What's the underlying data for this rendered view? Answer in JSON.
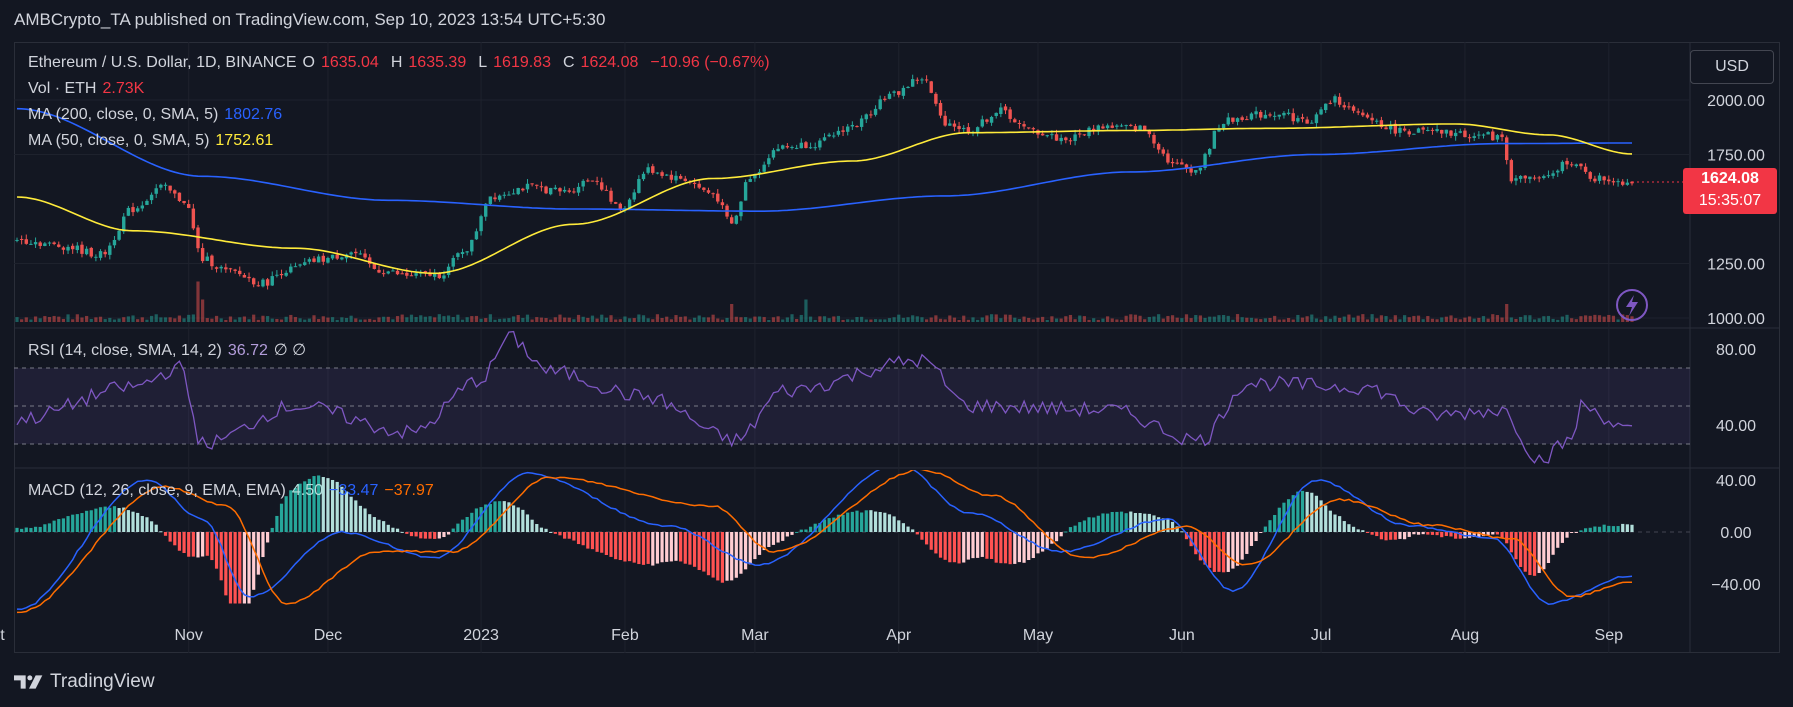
{
  "header": {
    "publisher": "AMBCrypto_TA published on TradingView.com, Sep 10, 2023 13:54 UTC+5:30"
  },
  "currency_button": "USD",
  "price_tag": {
    "price": "1624.08",
    "countdown": "15:35:07"
  },
  "legend": {
    "symbol": "Ethereum / U.S. Dollar, 1D, BINANCE",
    "o_label": "O",
    "o_value": "1635.04",
    "h_label": "H",
    "h_value": "1635.39",
    "l_label": "L",
    "l_value": "1619.83",
    "c_label": "C",
    "c_value": "1624.08",
    "change": "−10.96 (−0.67%)",
    "vol_label": "Vol · ETH",
    "vol_value": "2.73K",
    "ma200_label": "MA (200, close, 0, SMA, 5)",
    "ma200_value": "1802.76",
    "ma50_label": "MA (50, close, 0, SMA, 5)",
    "ma50_value": "1752.61",
    "rsi_label": "RSI (14, close, SMA, 14, 2)",
    "rsi_value": "36.72",
    "rsi_extra": "∅ ∅",
    "macd_label": "MACD (12, 26, close, 9, EMA, EMA)",
    "macd_hist": "4.50",
    "macd_line": "−33.47",
    "macd_signal": "−37.97"
  },
  "footer": {
    "brand": "TradingView"
  },
  "colors": {
    "bg": "#131722",
    "up": "#26a69a",
    "down": "#ef5350",
    "ma200": "#2962ff",
    "ma50": "#ffeb3b",
    "rsi": "#7e57c2",
    "macd": "#2962ff",
    "signal": "#ff6d00"
  },
  "chart_data": {
    "type": "candlestick",
    "x_tick_labels": [
      "ct",
      "Nov",
      "Dec",
      "2023",
      "Feb",
      "Mar",
      "Apr",
      "May",
      "Jun",
      "Jul",
      "Aug",
      "Sep"
    ],
    "price_axis": {
      "ticks": [
        "2000.00",
        "1750.00",
        "1250.00",
        "1000.00"
      ],
      "range": [
        990,
        2120
      ]
    },
    "rsi_axis": {
      "ticks": [
        "80.00",
        "40.00"
      ],
      "bands": [
        30,
        50,
        70
      ]
    },
    "macd_axis": {
      "ticks": [
        "40.00",
        "0.00",
        "−40.00"
      ],
      "range": [
        -62,
        48
      ]
    },
    "close_anchors": [
      {
        "d": 0,
        "v": 1360
      },
      {
        "d": 10,
        "v": 1330
      },
      {
        "d": 18,
        "v": 1290
      },
      {
        "d": 25,
        "v": 1500
      },
      {
        "d": 31,
        "v": 1600
      },
      {
        "d": 36,
        "v": 1540
      },
      {
        "d": 40,
        "v": 1270
      },
      {
        "d": 46,
        "v": 1210
      },
      {
        "d": 53,
        "v": 1160
      },
      {
        "d": 58,
        "v": 1220
      },
      {
        "d": 66,
        "v": 1270
      },
      {
        "d": 72,
        "v": 1300
      },
      {
        "d": 78,
        "v": 1220
      },
      {
        "d": 84,
        "v": 1195
      },
      {
        "d": 91,
        "v": 1200
      },
      {
        "d": 97,
        "v": 1320
      },
      {
        "d": 102,
        "v": 1560
      },
      {
        "d": 110,
        "v": 1600
      },
      {
        "d": 118,
        "v": 1580
      },
      {
        "d": 124,
        "v": 1640
      },
      {
        "d": 130,
        "v": 1500
      },
      {
        "d": 136,
        "v": 1680
      },
      {
        "d": 143,
        "v": 1640
      },
      {
        "d": 150,
        "v": 1570
      },
      {
        "d": 154,
        "v": 1430
      },
      {
        "d": 158,
        "v": 1650
      },
      {
        "d": 164,
        "v": 1780
      },
      {
        "d": 172,
        "v": 1800
      },
      {
        "d": 180,
        "v": 1880
      },
      {
        "d": 188,
        "v": 2020
      },
      {
        "d": 195,
        "v": 2100
      },
      {
        "d": 200,
        "v": 1900
      },
      {
        "d": 205,
        "v": 1860
      },
      {
        "d": 212,
        "v": 1950
      },
      {
        "d": 218,
        "v": 1860
      },
      {
        "d": 226,
        "v": 1820
      },
      {
        "d": 234,
        "v": 1880
      },
      {
        "d": 242,
        "v": 1870
      },
      {
        "d": 250,
        "v": 1700
      },
      {
        "d": 254,
        "v": 1680
      },
      {
        "d": 260,
        "v": 1900
      },
      {
        "d": 266,
        "v": 1930
      },
      {
        "d": 272,
        "v": 1940
      },
      {
        "d": 278,
        "v": 1900
      },
      {
        "d": 284,
        "v": 2000
      },
      {
        "d": 290,
        "v": 1920
      },
      {
        "d": 298,
        "v": 1860
      },
      {
        "d": 306,
        "v": 1850
      },
      {
        "d": 314,
        "v": 1840
      },
      {
        "d": 320,
        "v": 1830
      },
      {
        "d": 322,
        "v": 1640
      },
      {
        "d": 330,
        "v": 1640
      },
      {
        "d": 334,
        "v": 1720
      },
      {
        "d": 340,
        "v": 1640
      },
      {
        "d": 348,
        "v": 1624
      }
    ],
    "ma200_anchors": [
      {
        "d": 0,
        "v": 1960
      },
      {
        "d": 40,
        "v": 1650
      },
      {
        "d": 80,
        "v": 1540
      },
      {
        "d": 120,
        "v": 1500
      },
      {
        "d": 160,
        "v": 1490
      },
      {
        "d": 200,
        "v": 1560
      },
      {
        "d": 240,
        "v": 1670
      },
      {
        "d": 280,
        "v": 1750
      },
      {
        "d": 320,
        "v": 1800
      },
      {
        "d": 348,
        "v": 1802.76
      }
    ],
    "ma50_anchors": [
      {
        "d": 0,
        "v": 1555
      },
      {
        "d": 25,
        "v": 1400
      },
      {
        "d": 60,
        "v": 1320
      },
      {
        "d": 90,
        "v": 1205
      },
      {
        "d": 120,
        "v": 1430
      },
      {
        "d": 150,
        "v": 1640
      },
      {
        "d": 180,
        "v": 1720
      },
      {
        "d": 205,
        "v": 1850
      },
      {
        "d": 240,
        "v": 1860
      },
      {
        "d": 270,
        "v": 1870
      },
      {
        "d": 310,
        "v": 1890
      },
      {
        "d": 330,
        "v": 1840
      },
      {
        "d": 348,
        "v": 1752.61
      }
    ],
    "rsi_anchors": [
      {
        "d": 0,
        "v": 43
      },
      {
        "d": 25,
        "v": 60
      },
      {
        "d": 35,
        "v": 70
      },
      {
        "d": 40,
        "v": 30
      },
      {
        "d": 60,
        "v": 50
      },
      {
        "d": 85,
        "v": 36
      },
      {
        "d": 100,
        "v": 64
      },
      {
        "d": 106,
        "v": 86
      },
      {
        "d": 115,
        "v": 68
      },
      {
        "d": 135,
        "v": 55
      },
      {
        "d": 155,
        "v": 32
      },
      {
        "d": 165,
        "v": 58
      },
      {
        "d": 195,
        "v": 74
      },
      {
        "d": 205,
        "v": 50
      },
      {
        "d": 235,
        "v": 48
      },
      {
        "d": 255,
        "v": 32
      },
      {
        "d": 265,
        "v": 62
      },
      {
        "d": 290,
        "v": 60
      },
      {
        "d": 305,
        "v": 45
      },
      {
        "d": 320,
        "v": 48
      },
      {
        "d": 328,
        "v": 22
      },
      {
        "d": 335,
        "v": 32
      },
      {
        "d": 337,
        "v": 50
      },
      {
        "d": 348,
        "v": 36.72
      }
    ],
    "macd_anchors": [
      {
        "d": 0,
        "v": -60
      },
      {
        "d": 28,
        "v": 40
      },
      {
        "d": 40,
        "v": 10
      },
      {
        "d": 50,
        "v": -50
      },
      {
        "d": 70,
        "v": 0
      },
      {
        "d": 90,
        "v": -20
      },
      {
        "d": 110,
        "v": 45
      },
      {
        "d": 140,
        "v": 5
      },
      {
        "d": 160,
        "v": -25
      },
      {
        "d": 190,
        "v": 52
      },
      {
        "d": 205,
        "v": 15
      },
      {
        "d": 225,
        "v": -15
      },
      {
        "d": 248,
        "v": 10
      },
      {
        "d": 262,
        "v": -45
      },
      {
        "d": 280,
        "v": 40
      },
      {
        "d": 300,
        "v": 5
      },
      {
        "d": 318,
        "v": -5
      },
      {
        "d": 330,
        "v": -55
      },
      {
        "d": 348,
        "v": -33.47
      }
    ],
    "signal_anchors": [
      {
        "d": 0,
        "v": -62
      },
      {
        "d": 32,
        "v": 35
      },
      {
        "d": 45,
        "v": 20
      },
      {
        "d": 58,
        "v": -55
      },
      {
        "d": 78,
        "v": -15
      },
      {
        "d": 94,
        "v": -15
      },
      {
        "d": 115,
        "v": 42
      },
      {
        "d": 150,
        "v": 20
      },
      {
        "d": 163,
        "v": -15
      },
      {
        "d": 195,
        "v": 48
      },
      {
        "d": 210,
        "v": 28
      },
      {
        "d": 230,
        "v": -20
      },
      {
        "d": 252,
        "v": 4
      },
      {
        "d": 265,
        "v": -25
      },
      {
        "d": 285,
        "v": 25
      },
      {
        "d": 305,
        "v": 5
      },
      {
        "d": 322,
        "v": -5
      },
      {
        "d": 335,
        "v": -50
      },
      {
        "d": 348,
        "v": -37.97
      }
    ],
    "volume_spikes": [
      {
        "d": 39,
        "v": 9
      },
      {
        "d": 40,
        "v": 5
      },
      {
        "d": 154,
        "v": 4
      },
      {
        "d": 170,
        "v": 5
      },
      {
        "d": 321,
        "v": 4
      }
    ],
    "bar_count": 349
  }
}
